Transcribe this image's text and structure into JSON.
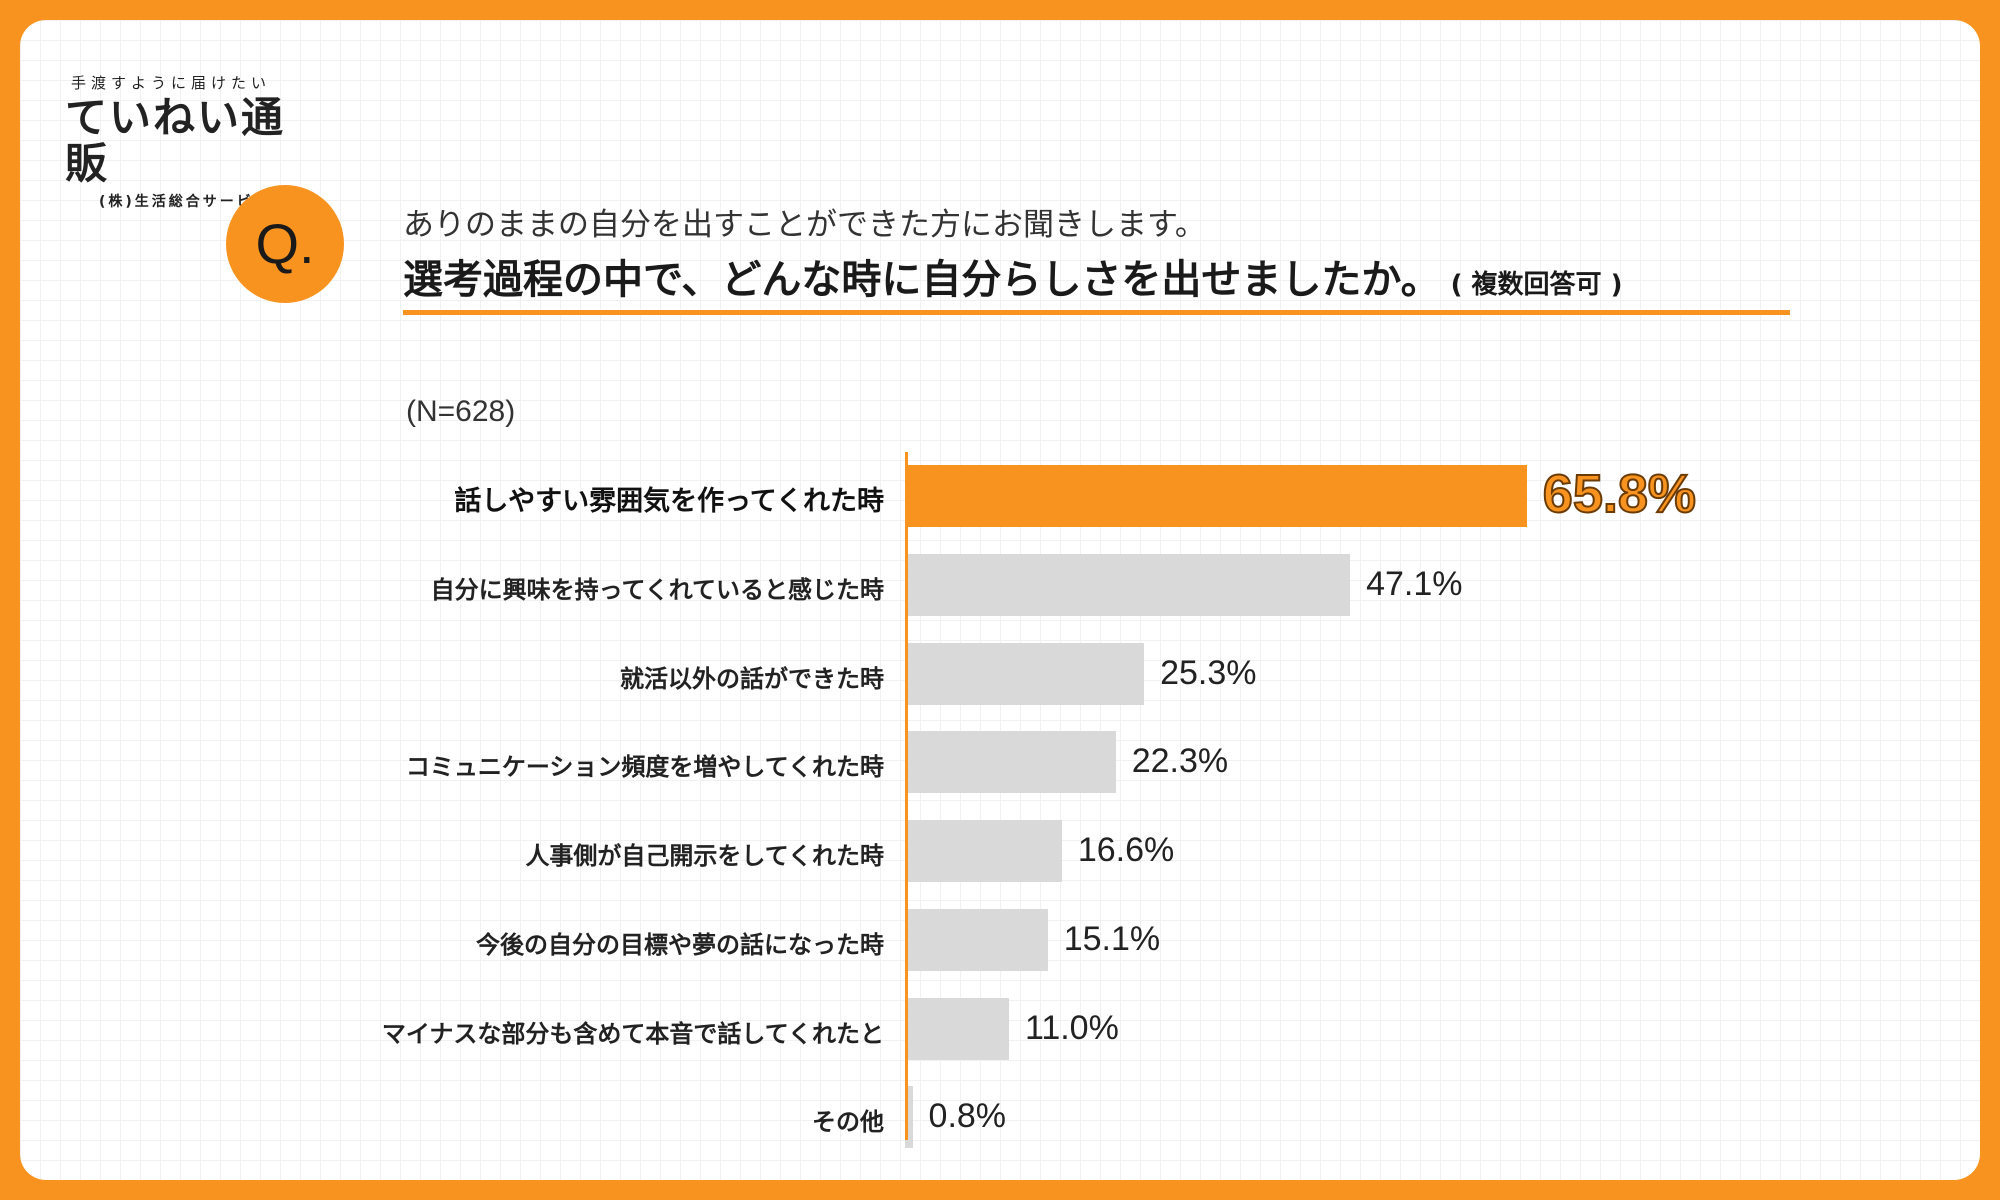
{
  "logo": {
    "tagline": "手渡すように届けたい",
    "name": "ていねい通販",
    "company": "(株)生活総合サービス"
  },
  "question": {
    "badge": "Q.",
    "line1": "ありのままの自分を出すことができた方にお聞きします。",
    "line2": "選考過程の中で、どんな時に自分らしさを出せましたか。",
    "note": "( 複数回答可 )"
  },
  "colors": {
    "accent": "#F7931E",
    "bar_default": "#d9d9d9"
  },
  "chart_data": {
    "type": "bar",
    "orientation": "horizontal",
    "n_label": "(N=628)",
    "unit": "%",
    "xlim": [
      0,
      100
    ],
    "categories": [
      "話しやすい雰囲気を作ってくれた時",
      "自分に興味を持ってくれていると感じた時",
      "就活以外の話ができた時",
      "コミュニケーション頻度を増やしてくれた時",
      "人事側が自己開示をしてくれた時",
      "今後の自分の目標や夢の話になった時",
      "マイナスな部分も含めて本音で話してくれたと",
      "その他"
    ],
    "values": [
      65.8,
      47.1,
      25.3,
      22.3,
      16.6,
      15.1,
      11.0,
      0.8
    ],
    "value_labels": [
      "65.8%",
      "47.1%",
      "25.3%",
      "22.3%",
      "16.6%",
      "15.1%",
      "11.0%",
      "0.8%"
    ],
    "highlight_index": 0
  }
}
